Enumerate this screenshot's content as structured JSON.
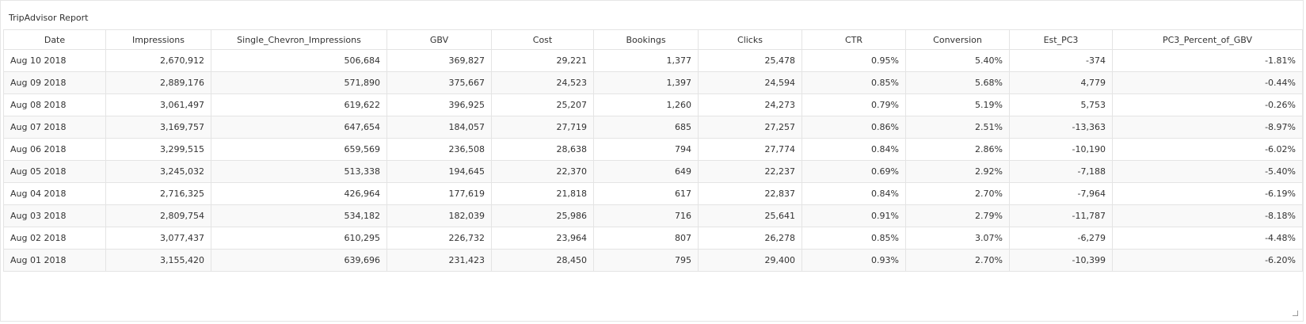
{
  "panel": {
    "title": "TripAdvisor Report"
  },
  "table": {
    "columns": [
      "Date",
      "Impressions",
      "Single_Chevron_Impressions",
      "GBV",
      "Cost",
      "Bookings",
      "Clicks",
      "CTR",
      "Conversion",
      "Est_PC3",
      "PC3_Percent_of_GBV"
    ],
    "rows": [
      [
        "Aug 10 2018",
        "2,670,912",
        "506,684",
        "369,827",
        "29,221",
        "1,377",
        "25,478",
        "0.95%",
        "5.40%",
        "-374",
        "-1.81%"
      ],
      [
        "Aug 09 2018",
        "2,889,176",
        "571,890",
        "375,667",
        "24,523",
        "1,397",
        "24,594",
        "0.85%",
        "5.68%",
        "4,779",
        "-0.44%"
      ],
      [
        "Aug 08 2018",
        "3,061,497",
        "619,622",
        "396,925",
        "25,207",
        "1,260",
        "24,273",
        "0.79%",
        "5.19%",
        "5,753",
        "-0.26%"
      ],
      [
        "Aug 07 2018",
        "3,169,757",
        "647,654",
        "184,057",
        "27,719",
        "685",
        "27,257",
        "0.86%",
        "2.51%",
        "-13,363",
        "-8.97%"
      ],
      [
        "Aug 06 2018",
        "3,299,515",
        "659,569",
        "236,508",
        "28,638",
        "794",
        "27,774",
        "0.84%",
        "2.86%",
        "-10,190",
        "-6.02%"
      ],
      [
        "Aug 05 2018",
        "3,245,032",
        "513,338",
        "194,645",
        "22,370",
        "649",
        "22,237",
        "0.69%",
        "2.92%",
        "-7,188",
        "-5.40%"
      ],
      [
        "Aug 04 2018",
        "2,716,325",
        "426,964",
        "177,619",
        "21,818",
        "617",
        "22,837",
        "0.84%",
        "2.70%",
        "-7,964",
        "-6.19%"
      ],
      [
        "Aug 03 2018",
        "2,809,754",
        "534,182",
        "182,039",
        "25,986",
        "716",
        "25,641",
        "0.91%",
        "2.79%",
        "-11,787",
        "-8.18%"
      ],
      [
        "Aug 02 2018",
        "3,077,437",
        "610,295",
        "226,732",
        "23,964",
        "807",
        "26,278",
        "0.85%",
        "3.07%",
        "-6,279",
        "-4.48%"
      ],
      [
        "Aug 01 2018",
        "3,155,420",
        "639,696",
        "231,423",
        "28,450",
        "795",
        "29,400",
        "0.93%",
        "2.70%",
        "-10,399",
        "-6.20%"
      ]
    ]
  }
}
